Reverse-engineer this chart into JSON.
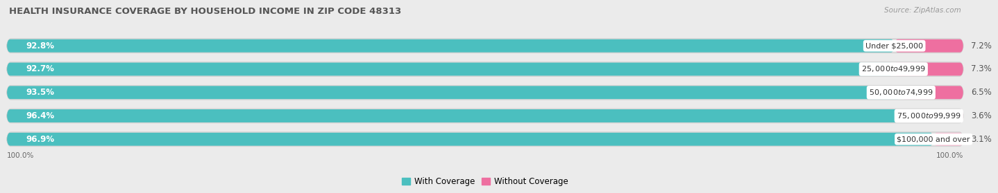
{
  "title": "HEALTH INSURANCE COVERAGE BY HOUSEHOLD INCOME IN ZIP CODE 48313",
  "source": "Source: ZipAtlas.com",
  "categories": [
    "Under $25,000",
    "$25,000 to $49,999",
    "$50,000 to $74,999",
    "$75,000 to $99,999",
    "$100,000 and over"
  ],
  "with_coverage": [
    92.8,
    92.7,
    93.5,
    96.4,
    96.9
  ],
  "without_coverage": [
    7.2,
    7.3,
    6.5,
    3.6,
    3.1
  ],
  "with_coverage_color": "#4BBFBF",
  "without_coverage_colors": [
    "#EE6FA0",
    "#EE6FA0",
    "#EE6FA0",
    "#F4A0C0",
    "#F4B8CF"
  ],
  "background_color": "#EBEBEB",
  "bar_bg_color": "#DCDCDC",
  "bar_height": 0.62,
  "title_fontsize": 9.5,
  "source_fontsize": 7.5,
  "label_fontsize": 8.5,
  "tick_fontsize": 7.5,
  "legend_fontsize": 8.5,
  "axis_label_left": "100.0%",
  "axis_label_right": "100.0%"
}
